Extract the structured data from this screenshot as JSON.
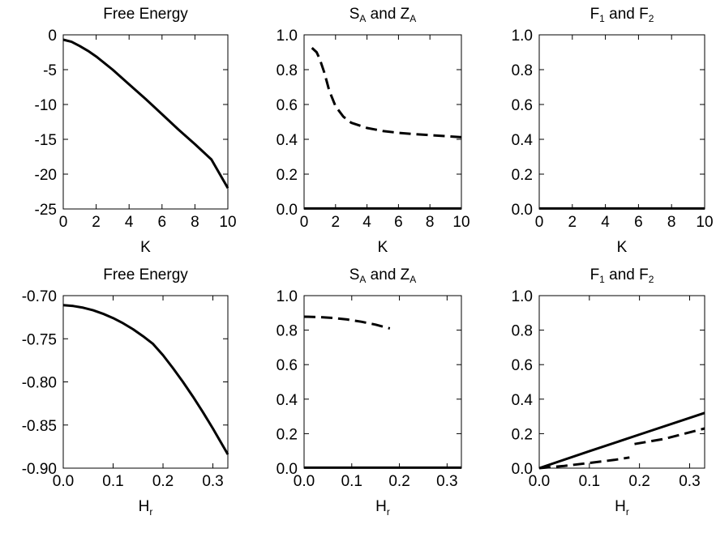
{
  "chart_data": [
    {
      "type": "line",
      "title": "Free Energy",
      "xlabel": "K",
      "ylabel": "",
      "xlim": [
        0,
        10
      ],
      "ylim": [
        -25,
        0
      ],
      "xticks": [
        "0",
        "2",
        "4",
        "6",
        "8",
        "10"
      ],
      "yticks": [
        "0",
        "-5",
        "-10",
        "-15",
        "-20",
        "-25"
      ],
      "series": [
        {
          "style": "solid",
          "x": [
            0,
            0.5,
            1,
            1.5,
            2,
            3,
            4,
            5,
            6,
            7,
            8,
            9,
            10
          ],
          "y": [
            -0.7,
            -1.0,
            -1.6,
            -2.3,
            -3.1,
            -5.0,
            -7.1,
            -9.2,
            -11.4,
            -13.6,
            -15.7,
            -17.9,
            -22.0
          ]
        }
      ]
    },
    {
      "type": "line",
      "title": "S",
      "title_sub1": "A",
      "title_mid": " and Z",
      "title_sub2": "A",
      "xlabel": "K",
      "ylabel": "",
      "xlim": [
        0,
        10
      ],
      "ylim": [
        0,
        1
      ],
      "xticks": [
        "0",
        "2",
        "4",
        "6",
        "8",
        "10"
      ],
      "yticks": [
        "0.0",
        "0.2",
        "0.4",
        "0.6",
        "0.8",
        "1.0"
      ],
      "series": [
        {
          "style": "dashed",
          "x": [
            0.5,
            0.8,
            1.0,
            1.3,
            1.6,
            2.0,
            2.5,
            3.0,
            4.0,
            5.0,
            6.0,
            7.0,
            8.0,
            9.0,
            10.0
          ],
          "y": [
            0.925,
            0.9,
            0.86,
            0.78,
            0.68,
            0.59,
            0.53,
            0.495,
            0.465,
            0.448,
            0.437,
            0.43,
            0.424,
            0.418,
            0.412
          ]
        },
        {
          "style": "solid",
          "x": [
            0,
            10
          ],
          "y": [
            0.003,
            0.003
          ]
        }
      ]
    },
    {
      "type": "line",
      "title": "F",
      "title_sub1": "1",
      "title_mid": " and F",
      "title_sub2": "2",
      "xlabel": "K",
      "ylabel": "",
      "xlim": [
        0,
        10
      ],
      "ylim": [
        0,
        1
      ],
      "xticks": [
        "0",
        "2",
        "4",
        "6",
        "8",
        "10"
      ],
      "yticks": [
        "0.0",
        "0.2",
        "0.4",
        "0.6",
        "0.8",
        "1.0"
      ],
      "series": [
        {
          "style": "solid",
          "x": [
            0,
            10
          ],
          "y": [
            0.003,
            0.003
          ]
        }
      ]
    },
    {
      "type": "line",
      "title": "Free Energy",
      "xlabel": "H",
      "xlabel_sub": "r",
      "ylabel": "",
      "xlim": [
        0,
        0.33
      ],
      "ylim": [
        -0.9,
        -0.7
      ],
      "xticks": [
        "0.0",
        "0.1",
        "0.2",
        "0.3"
      ],
      "yticks": [
        "-0.70",
        "-0.75",
        "-0.80",
        "-0.85",
        "-0.90"
      ],
      "series": [
        {
          "style": "solid",
          "x": [
            0,
            0.02,
            0.04,
            0.06,
            0.08,
            0.1,
            0.12,
            0.14,
            0.16,
            0.18,
            0.2,
            0.22,
            0.24,
            0.26,
            0.28,
            0.3,
            0.33
          ],
          "y": [
            -0.711,
            -0.712,
            -0.714,
            -0.717,
            -0.721,
            -0.726,
            -0.732,
            -0.739,
            -0.747,
            -0.756,
            -0.769,
            -0.784,
            -0.8,
            -0.817,
            -0.835,
            -0.854,
            -0.884
          ]
        }
      ]
    },
    {
      "type": "line",
      "title": "S",
      "title_sub1": "A",
      "title_mid": " and Z",
      "title_sub2": "A",
      "xlabel": "H",
      "xlabel_sub": "r",
      "ylabel": "",
      "xlim": [
        0,
        0.33
      ],
      "ylim": [
        0,
        1
      ],
      "xticks": [
        "0.0",
        "0.1",
        "0.2",
        "0.3"
      ],
      "yticks": [
        "0.0",
        "0.2",
        "0.4",
        "0.6",
        "0.8",
        "1.0"
      ],
      "series": [
        {
          "style": "dashed",
          "x": [
            0,
            0.03,
            0.06,
            0.09,
            0.12,
            0.15,
            0.18
          ],
          "y": [
            0.878,
            0.876,
            0.871,
            0.862,
            0.849,
            0.832,
            0.81
          ]
        },
        {
          "style": "solid",
          "x": [
            0,
            0.33
          ],
          "y": [
            0.003,
            0.003
          ]
        }
      ]
    },
    {
      "type": "line",
      "title": "F",
      "title_sub1": "1",
      "title_mid": " and F",
      "title_sub2": "2",
      "xlabel": "H",
      "xlabel_sub": "r",
      "ylabel": "",
      "xlim": [
        0,
        0.33
      ],
      "ylim": [
        0,
        1
      ],
      "xticks": [
        "0.0",
        "0.1",
        "0.2",
        "0.3"
      ],
      "yticks": [
        "0.0",
        "0.2",
        "0.4",
        "0.6",
        "0.8",
        "1.0"
      ],
      "series": [
        {
          "style": "solid",
          "x": [
            0,
            0.1,
            0.2,
            0.33
          ],
          "y": [
            0,
            0.098,
            0.195,
            0.32
          ]
        },
        {
          "style": "dashed",
          "x": [
            0,
            0.05,
            0.1,
            0.15,
            0.18
          ],
          "y": [
            0,
            0.013,
            0.03,
            0.048,
            0.062
          ]
        },
        {
          "style": "dashed",
          "x": [
            0.19,
            0.25,
            0.33
          ],
          "y": [
            0.14,
            0.17,
            0.23
          ]
        }
      ]
    }
  ]
}
